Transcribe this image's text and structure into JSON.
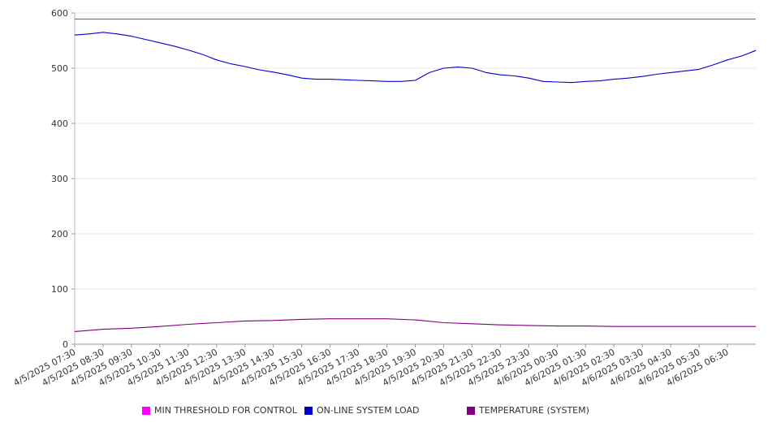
{
  "chart_data": {
    "type": "line",
    "title": "",
    "xlabel": "",
    "ylabel": "",
    "ylim": [
      0,
      600
    ],
    "y_ticks": [
      0,
      100,
      200,
      300,
      400,
      500,
      600
    ],
    "grid": true,
    "legend_position": "bottom",
    "x_tick_labels": [
      "4/5/2025 07:30",
      "4/5/2025 08:30",
      "4/5/2025 09:30",
      "4/5/2025 10:30",
      "4/5/2025 11:30",
      "4/5/2025 12:30",
      "4/5/2025 13:30",
      "4/5/2025 14:30",
      "4/5/2025 15:30",
      "4/5/2025 16:30",
      "4/5/2025 17:30",
      "4/5/2025 18:30",
      "4/5/2025 19:30",
      "4/5/2025 20:30",
      "4/5/2025 21:30",
      "4/5/2025 22:30",
      "4/5/2025 23:30",
      "4/6/2025 00:30",
      "4/6/2025 01:30",
      "4/6/2025 02:30",
      "4/6/2025 03:30",
      "4/6/2025 04:30",
      "4/6/2025 05:30",
      "4/6/2025 06:30"
    ],
    "series": [
      {
        "name": "MIN THRESHOLD FOR CONTROL",
        "color": "#ff00ff",
        "x": [
          "4/5/2025 07:30",
          "4/6/2025 07:30"
        ],
        "values": [
          589,
          589
        ]
      },
      {
        "name": "ON-LINE SYSTEM LOAD",
        "color": "#0000cc",
        "x": [
          "4/5/2025 07:30",
          "4/5/2025 08:00",
          "4/5/2025 08:30",
          "4/5/2025 09:00",
          "4/5/2025 09:30",
          "4/5/2025 10:00",
          "4/5/2025 10:30",
          "4/5/2025 11:00",
          "4/5/2025 11:30",
          "4/5/2025 12:00",
          "4/5/2025 12:30",
          "4/5/2025 13:00",
          "4/5/2025 13:30",
          "4/5/2025 14:00",
          "4/5/2025 14:30",
          "4/5/2025 15:00",
          "4/5/2025 15:30",
          "4/5/2025 16:00",
          "4/5/2025 16:30",
          "4/5/2025 17:00",
          "4/5/2025 17:30",
          "4/5/2025 18:00",
          "4/5/2025 18:30",
          "4/5/2025 19:00",
          "4/5/2025 19:30",
          "4/5/2025 20:00",
          "4/5/2025 20:30",
          "4/5/2025 21:00",
          "4/5/2025 21:30",
          "4/5/2025 22:00",
          "4/5/2025 22:30",
          "4/5/2025 23:00",
          "4/5/2025 23:30",
          "4/6/2025 00:00",
          "4/6/2025 00:30",
          "4/6/2025 01:00",
          "4/6/2025 01:30",
          "4/6/2025 02:00",
          "4/6/2025 02:30",
          "4/6/2025 03:00",
          "4/6/2025 03:30",
          "4/6/2025 04:00",
          "4/6/2025 04:30",
          "4/6/2025 05:00",
          "4/6/2025 05:30",
          "4/6/2025 06:00",
          "4/6/2025 06:30",
          "4/6/2025 07:00",
          "4/6/2025 07:30"
        ],
        "values": [
          560,
          562,
          565,
          562,
          558,
          552,
          546,
          540,
          533,
          525,
          515,
          508,
          503,
          497,
          493,
          488,
          482,
          480,
          480,
          479,
          478,
          477,
          476,
          476,
          478,
          492,
          500,
          502,
          500,
          492,
          488,
          486,
          482,
          476,
          475,
          474,
          476,
          477,
          480,
          482,
          485,
          489,
          492,
          495,
          498,
          506,
          515,
          522,
          532
        ]
      },
      {
        "name": "TEMPERATURE (SYSTEM)",
        "color": "#800080",
        "x": [
          "4/5/2025 07:30",
          "4/5/2025 08:30",
          "4/5/2025 09:30",
          "4/5/2025 10:30",
          "4/5/2025 11:30",
          "4/5/2025 12:30",
          "4/5/2025 13:30",
          "4/5/2025 14:30",
          "4/5/2025 15:30",
          "4/5/2025 16:30",
          "4/5/2025 17:30",
          "4/5/2025 18:30",
          "4/5/2025 19:30",
          "4/5/2025 20:30",
          "4/5/2025 21:30",
          "4/5/2025 22:30",
          "4/5/2025 23:30",
          "4/6/2025 00:30",
          "4/6/2025 01:30",
          "4/6/2025 02:30",
          "4/6/2025 03:30",
          "4/6/2025 04:30",
          "4/6/2025 05:30",
          "4/6/2025 06:30",
          "4/6/2025 07:30"
        ],
        "values": [
          23,
          27,
          29,
          32,
          36,
          39,
          42,
          43,
          45,
          46,
          46,
          46,
          44,
          39,
          37,
          35,
          34,
          33,
          33,
          32,
          32,
          32,
          32,
          32,
          32
        ]
      }
    ]
  }
}
